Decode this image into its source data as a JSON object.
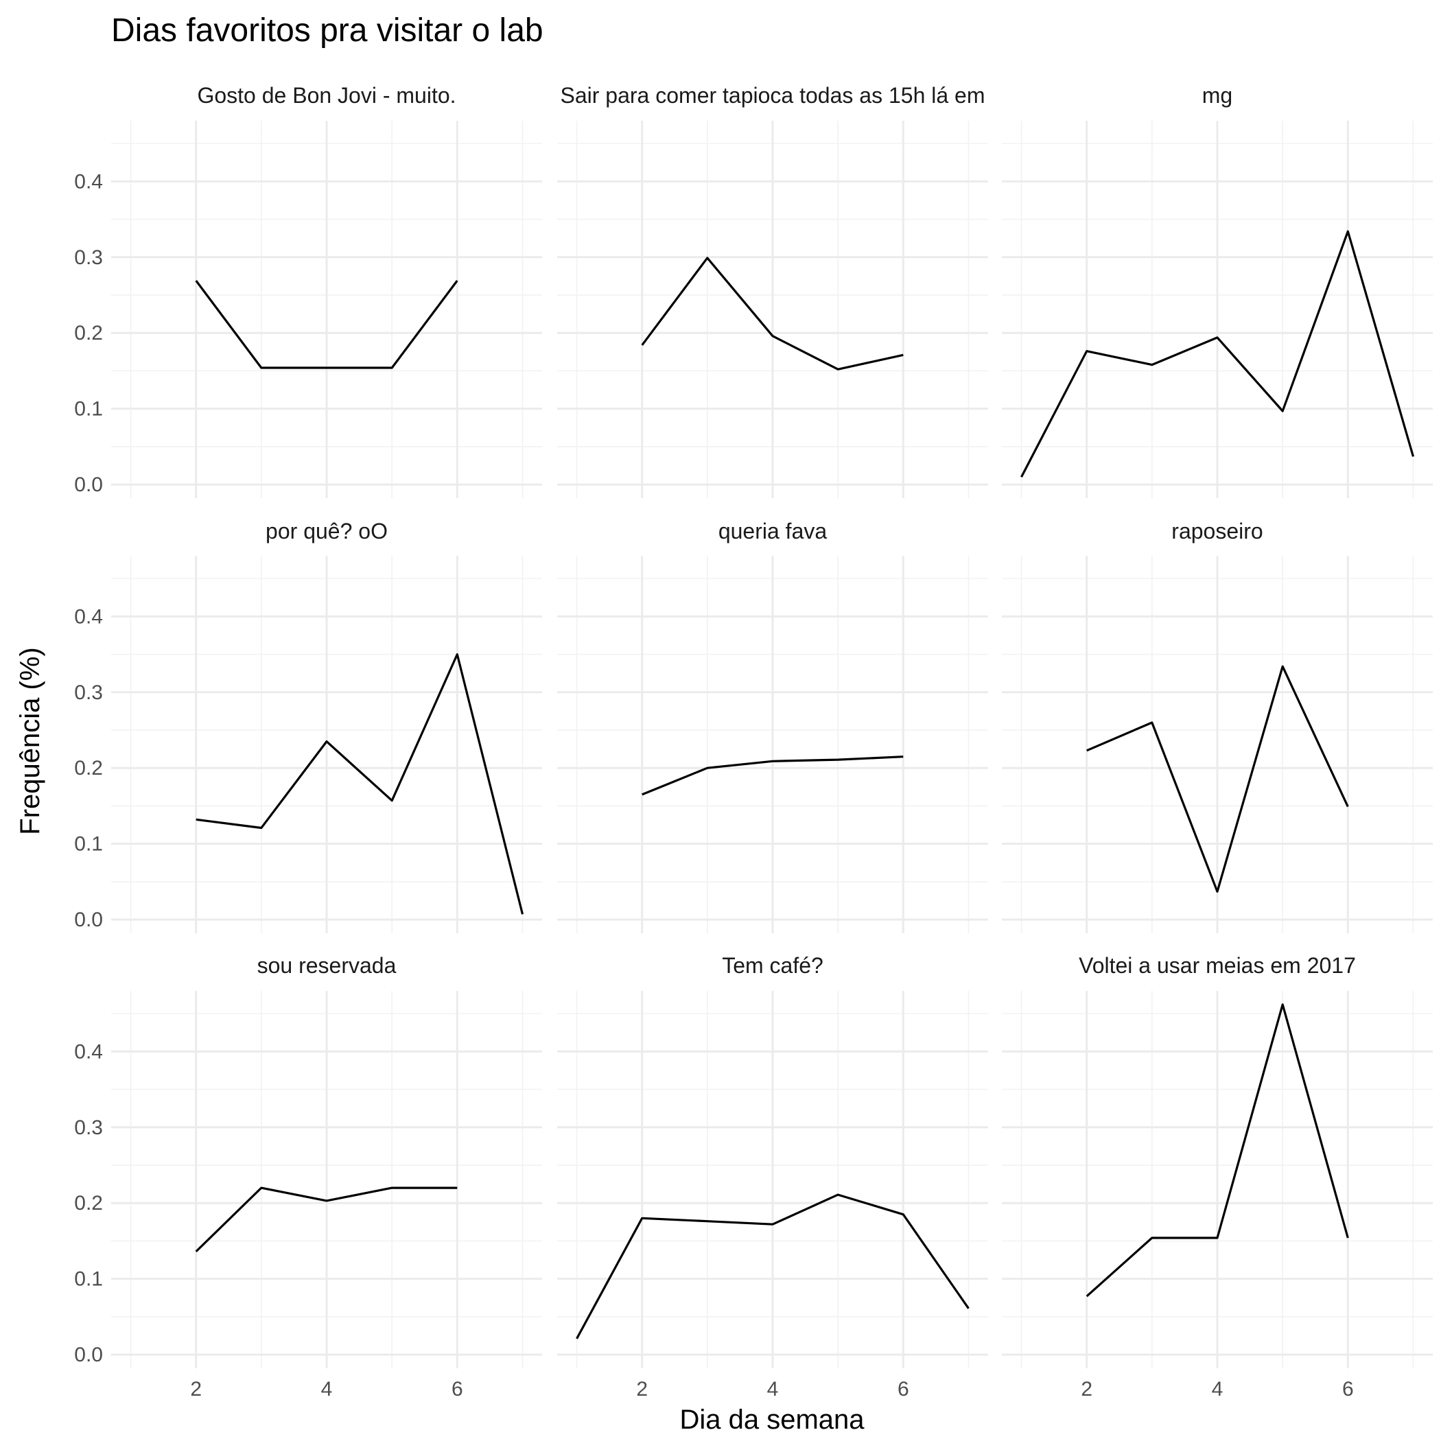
{
  "chart_data": {
    "type": "line",
    "title": "Dias favoritos pra visitar o lab",
    "xlabel": "Dia da semana",
    "ylabel": "Frequência (%)",
    "xlim": [
      0.7,
      7.3
    ],
    "ylim": [
      -0.018,
      0.48
    ],
    "x_ticks": [
      2,
      4,
      6
    ],
    "y_ticks": [
      0.0,
      0.1,
      0.2,
      0.3,
      0.4
    ],
    "x_tick_labels": [
      "2",
      "4",
      "6"
    ],
    "y_tick_labels": [
      "0.0",
      "0.1",
      "0.2",
      "0.3",
      "0.4"
    ],
    "grid": true,
    "legend": "none",
    "facets": [
      {
        "label": "Gosto de Bon Jovi - muito.",
        "x": [
          2,
          3,
          4,
          5,
          6
        ],
        "y": [
          0.269,
          0.154,
          0.154,
          0.154,
          0.269
        ]
      },
      {
        "label": "Sair para comer tapioca todas as 15h lá em",
        "x": [
          2,
          3,
          4,
          5,
          6
        ],
        "y": [
          0.184,
          0.299,
          0.196,
          0.152,
          0.171
        ]
      },
      {
        "label": "mg",
        "x": [
          1,
          2,
          3,
          4,
          5,
          6,
          7
        ],
        "y": [
          0.01,
          0.176,
          0.158,
          0.194,
          0.097,
          0.334,
          0.037
        ]
      },
      {
        "label": "por quê? oO",
        "x": [
          2,
          3,
          4,
          5,
          6,
          7
        ],
        "y": [
          0.132,
          0.121,
          0.235,
          0.157,
          0.35,
          0.007
        ]
      },
      {
        "label": "queria fava",
        "x": [
          2,
          3,
          4,
          5,
          6
        ],
        "y": [
          0.165,
          0.2,
          0.209,
          0.211,
          0.215
        ]
      },
      {
        "label": "raposeiro",
        "x": [
          2,
          3,
          4,
          5,
          6
        ],
        "y": [
          0.223,
          0.26,
          0.037,
          0.334,
          0.149
        ]
      },
      {
        "label": "sou reservada",
        "x": [
          2,
          3,
          4,
          5,
          6
        ],
        "y": [
          0.136,
          0.22,
          0.203,
          0.22,
          0.22
        ]
      },
      {
        "label": "Tem café?",
        "x": [
          1,
          2,
          3,
          4,
          5,
          6,
          7
        ],
        "y": [
          0.021,
          0.18,
          0.176,
          0.172,
          0.211,
          0.185,
          0.061
        ]
      },
      {
        "label": "Voltei a usar meias em 2017",
        "x": [
          2,
          3,
          4,
          5,
          6
        ],
        "y": [
          0.077,
          0.154,
          0.154,
          0.462,
          0.154
        ]
      }
    ]
  }
}
